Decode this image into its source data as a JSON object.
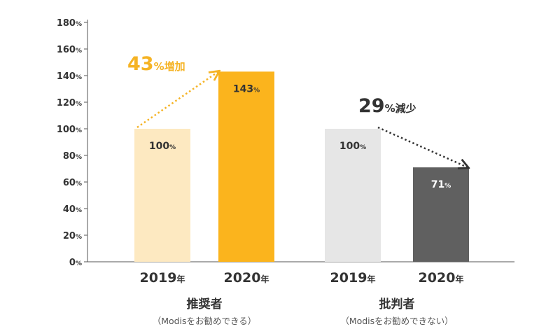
{
  "chart_data": {
    "type": "bar",
    "title": "",
    "xlabel": "",
    "ylabel": "",
    "y_unit": "%",
    "ylim": [
      0,
      180
    ],
    "y_ticks": [
      0,
      20,
      40,
      60,
      80,
      100,
      120,
      140,
      160,
      180
    ],
    "grid": false,
    "legend": "none",
    "year_suffix": "年",
    "groups": [
      {
        "name": "推奨者",
        "subtitle": "（Modisをお勧めできる）",
        "bars": [
          {
            "year": "2019",
            "value": 100,
            "label": "100",
            "color": "#fde9c1",
            "label_color": "#333333"
          },
          {
            "year": "2020",
            "value": 143,
            "label": "143",
            "color": "#fbb41d",
            "label_color": "#333333"
          }
        ],
        "change": {
          "value": "43",
          "unit": "%",
          "word": "増加",
          "color": "#f5b324",
          "direction": "up"
        }
      },
      {
        "name": "批判者",
        "subtitle": "（Modisをお勧めできない）",
        "bars": [
          {
            "year": "2019",
            "value": 100,
            "label": "100",
            "color": "#e6e6e6",
            "label_color": "#333333"
          },
          {
            "year": "2020",
            "value": 71,
            "label": "71",
            "color": "#606060",
            "label_color": "#ffffff"
          }
        ],
        "change": {
          "value": "29",
          "unit": "%",
          "word": "減少",
          "color": "#333333",
          "direction": "down"
        }
      }
    ]
  }
}
